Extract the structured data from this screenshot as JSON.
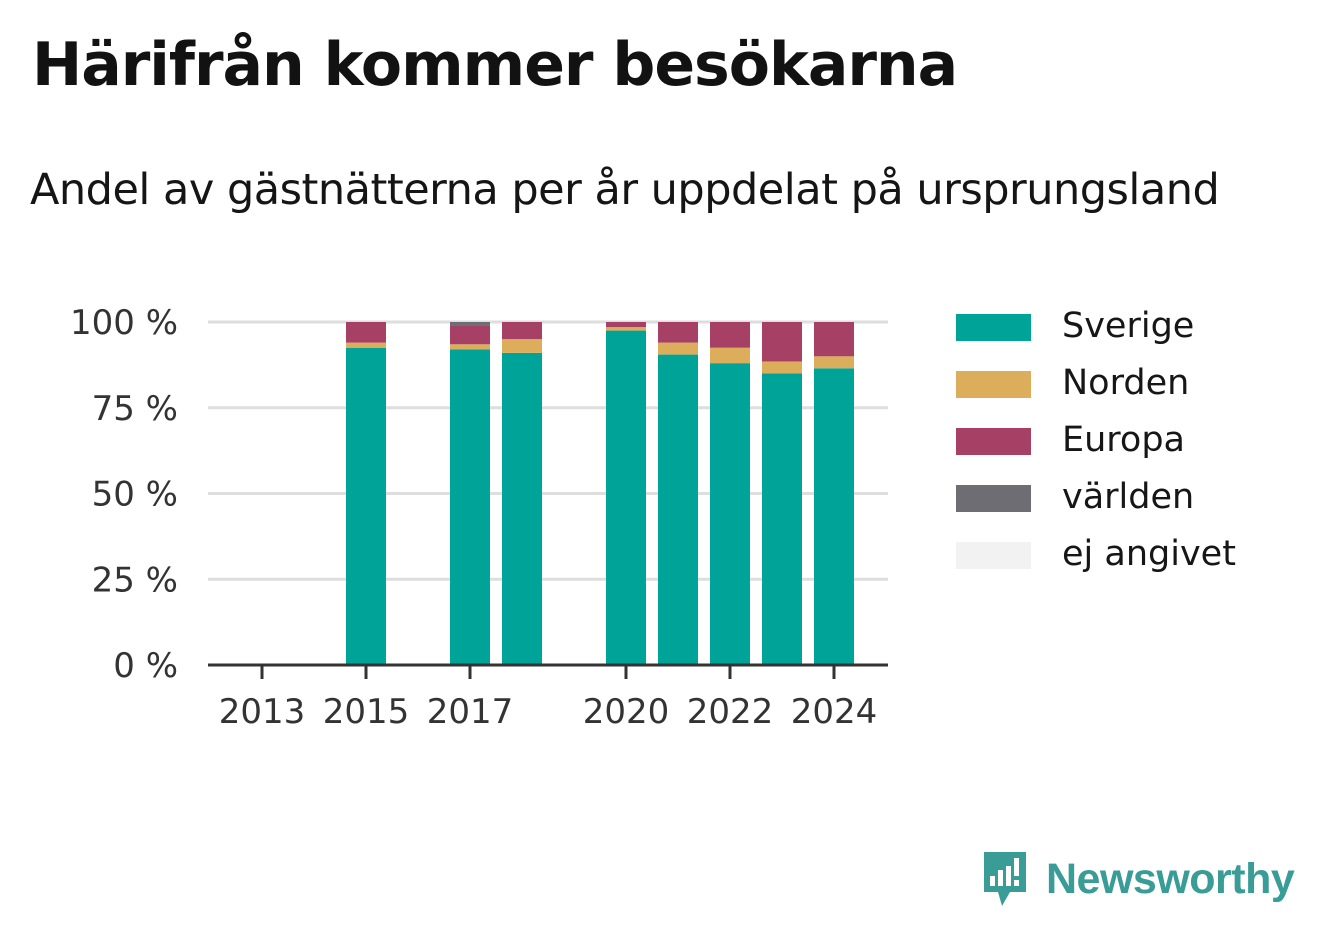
{
  "chart_data": {
    "type": "bar",
    "stacked": true,
    "title": "Härifrån kommer besökarna",
    "subtitle": "Andel av gästnätterna per år uppdelat på ursprungsland",
    "x": [
      2013,
      2014,
      2015,
      2016,
      2017,
      2018,
      2019,
      2020,
      2021,
      2022,
      2023,
      2024
    ],
    "x_ticks": [
      "2013",
      "2015",
      "2017",
      "2020",
      "2022",
      "2024"
    ],
    "y_ticks": [
      "0 %",
      "25 %",
      "50 %",
      "75 %",
      "100 %"
    ],
    "ylim": [
      0,
      100
    ],
    "grid": true,
    "legend_position": "right",
    "series": [
      {
        "name": "Sverige",
        "color": "#00a398",
        "values": [
          null,
          null,
          92.5,
          null,
          92,
          91,
          null,
          97.5,
          90.5,
          88,
          85,
          86.5
        ]
      },
      {
        "name": "Norden",
        "color": "#dcae5c",
        "values": [
          null,
          null,
          1.5,
          null,
          1.5,
          4,
          null,
          1,
          3.5,
          4.5,
          3.5,
          3.5
        ]
      },
      {
        "name": "Europa",
        "color": "#a64065",
        "values": [
          null,
          null,
          6,
          null,
          5.5,
          5,
          null,
          1.5,
          6,
          7.5,
          11.5,
          10
        ]
      },
      {
        "name": "världen",
        "color": "#6e6d73",
        "values": [
          null,
          null,
          0,
          null,
          1,
          0,
          null,
          0,
          0,
          0,
          0,
          0
        ]
      },
      {
        "name": "ej angivet",
        "color": "#f2f2f2",
        "values": [
          null,
          null,
          0,
          null,
          0,
          0,
          null,
          0,
          0,
          0,
          0,
          0
        ]
      }
    ]
  },
  "brand": {
    "name": "Newsworthy",
    "color": "#3a9c97"
  }
}
